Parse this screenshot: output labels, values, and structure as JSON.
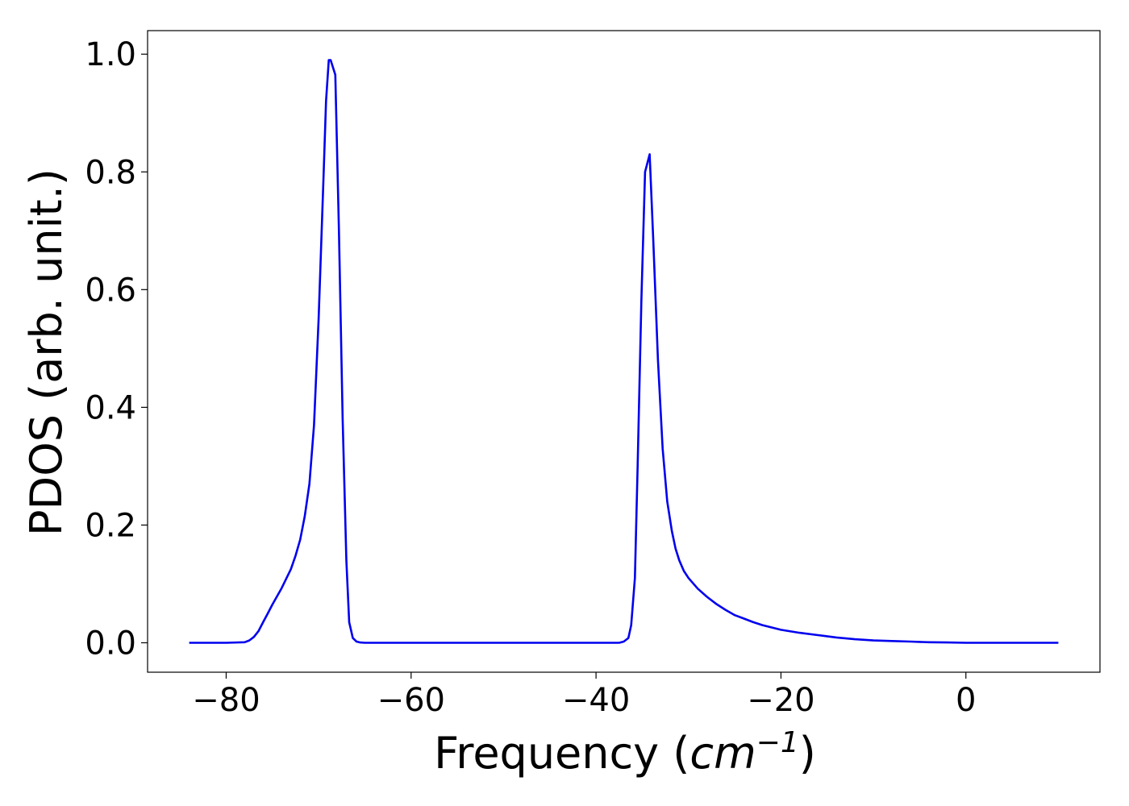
{
  "chart_data": {
    "type": "line",
    "xlabel": {
      "prefix": "Frequency (",
      "unit_base": "cm",
      "unit_exp": "−1",
      "suffix": ")"
    },
    "ylabel": "PDOS (arb. unit.)",
    "xlim": [
      -88.5,
      14.5
    ],
    "ylim": [
      -0.05,
      1.04
    ],
    "x_ticks": [
      -80,
      -60,
      -40,
      -20,
      0
    ],
    "y_ticks": [
      0.0,
      0.2,
      0.4,
      0.6,
      0.8,
      1.0
    ],
    "x_tick_labels": [
      "−80",
      "−60",
      "−40",
      "−20",
      "0"
    ],
    "y_tick_labels": [
      "0.0",
      "0.2",
      "0.4",
      "0.6",
      "0.8",
      "1.0"
    ],
    "grid": false,
    "series": [
      {
        "color": "#0000ee",
        "x": [
          -84,
          -80,
          -78,
          -77.5,
          -77,
          -76.5,
          -76,
          -75.5,
          -75,
          -74,
          -73,
          -72.5,
          -72,
          -71.5,
          -71,
          -70.5,
          -70,
          -69.5,
          -69.2,
          -68.9,
          -68.7,
          -68.2,
          -67.8,
          -67.4,
          -67,
          -66.7,
          -66.3,
          -65.9,
          -65.5,
          -65,
          -64,
          -50,
          -40,
          -37.5,
          -37,
          -36.5,
          -36.2,
          -35.8,
          -35.5,
          -35.1,
          -34.7,
          -34.2,
          -33.8,
          -33.3,
          -32.8,
          -32.3,
          -31.8,
          -31.4,
          -31,
          -30.5,
          -30,
          -29,
          -28,
          -27,
          -26,
          -25,
          -24,
          -23,
          -22,
          -21,
          -20,
          -18,
          -16,
          -14,
          -12,
          -10,
          -8,
          -6,
          -4,
          -2,
          0,
          5,
          10
        ],
        "values": [
          0.0,
          0.0,
          0.001,
          0.004,
          0.01,
          0.02,
          0.035,
          0.05,
          0.065,
          0.093,
          0.125,
          0.148,
          0.175,
          0.215,
          0.27,
          0.37,
          0.55,
          0.78,
          0.92,
          0.99,
          0.99,
          0.965,
          0.7,
          0.38,
          0.14,
          0.035,
          0.008,
          0.002,
          0.0005,
          0.0,
          0.0,
          0.0,
          0.0,
          0.0,
          0.002,
          0.008,
          0.03,
          0.11,
          0.3,
          0.58,
          0.8,
          0.83,
          0.68,
          0.48,
          0.33,
          0.24,
          0.19,
          0.16,
          0.14,
          0.122,
          0.11,
          0.092,
          0.078,
          0.066,
          0.056,
          0.047,
          0.041,
          0.035,
          0.03,
          0.026,
          0.022,
          0.017,
          0.013,
          0.009,
          0.006,
          0.004,
          0.003,
          0.002,
          0.001,
          0.0005,
          0.0,
          0.0,
          0.0
        ]
      }
    ]
  }
}
